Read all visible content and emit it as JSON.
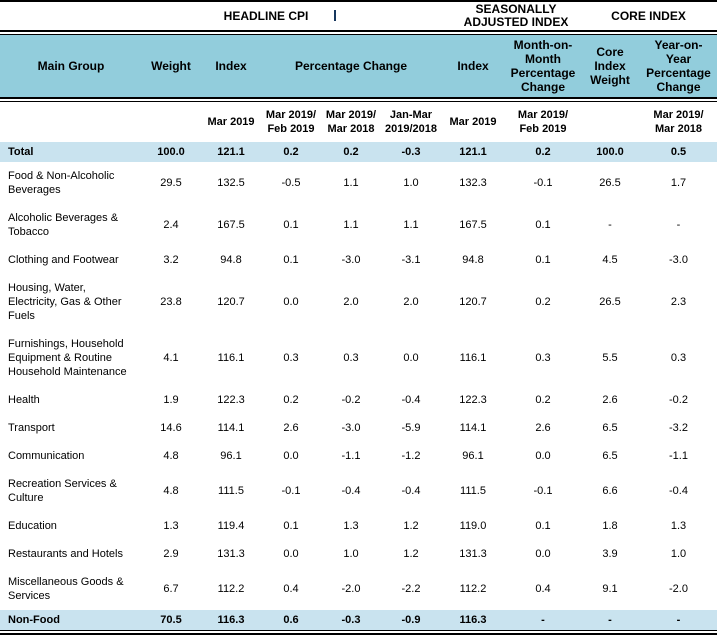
{
  "colors": {
    "header-bg": "#92CDDC",
    "highlight-bg": "#C9E3EF",
    "stray-mark": "#17375E"
  },
  "table": {
    "group_headers": {
      "headline": "HEADLINE CPI",
      "seasonal": "SEASONALLY\nADJUSTED INDEX",
      "core": "CORE INDEX"
    },
    "columns": {
      "main_group": "Main Group",
      "weight": "Weight",
      "index": "Index",
      "pct_change": "Percentage Change",
      "sa_index": "Index",
      "mom_pct_change": "Month-on-\nMonth\nPercentage\nChange",
      "core_weight": "Core\nIndex\nWeight",
      "yoy_pct_change": "Year-on-\nYear\nPercentage\nChange"
    },
    "period_headers": {
      "index": "Mar 2019",
      "chg_mom": "Mar 2019/\nFeb 2019",
      "chg_yoy": "Mar 2019/\nMar 2018",
      "chg_qtr": "Jan-Mar\n2019/2018",
      "sa_index": "Mar 2019",
      "sa_chg": "Mar 2019/\nFeb 2019",
      "core_chg": "Mar 2019/\nMar 2018"
    },
    "rows": [
      {
        "name": "Total",
        "highlight": true,
        "values": [
          "100.0",
          "121.1",
          "0.2",
          "0.2",
          "-0.3",
          "121.1",
          "0.2",
          "100.0",
          "0.5"
        ]
      },
      {
        "name": "Food & Non-Alcoholic Beverages",
        "highlight": false,
        "values": [
          "29.5",
          "132.5",
          "-0.5",
          "1.1",
          "1.0",
          "132.3",
          "-0.1",
          "26.5",
          "1.7"
        ]
      },
      {
        "name": "Alcoholic Beverages & Tobacco",
        "highlight": false,
        "values": [
          "2.4",
          "167.5",
          "0.1",
          "1.1",
          "1.1",
          "167.5",
          "0.1",
          "-",
          "-"
        ]
      },
      {
        "name": "Clothing and Footwear",
        "highlight": false,
        "values": [
          "3.2",
          "94.8",
          "0.1",
          "-3.0",
          "-3.1",
          "94.8",
          "0.1",
          "4.5",
          "-3.0"
        ]
      },
      {
        "name": "Housing, Water, Electricity, Gas & Other Fuels",
        "highlight": false,
        "values": [
          "23.8",
          "120.7",
          "0.0",
          "2.0",
          "2.0",
          "120.7",
          "0.2",
          "26.5",
          "2.3"
        ]
      },
      {
        "name": "Furnishings, Household Equipment & Routine Household Maintenance",
        "highlight": false,
        "values": [
          "4.1",
          "116.1",
          "0.3",
          "0.3",
          "0.0",
          "116.1",
          "0.3",
          "5.5",
          "0.3"
        ]
      },
      {
        "name": "Health",
        "highlight": false,
        "values": [
          "1.9",
          "122.3",
          "0.2",
          "-0.2",
          "-0.4",
          "122.3",
          "0.2",
          "2.6",
          "-0.2"
        ]
      },
      {
        "name": "Transport",
        "highlight": false,
        "values": [
          "14.6",
          "114.1",
          "2.6",
          "-3.0",
          "-5.9",
          "114.1",
          "2.6",
          "6.5",
          "-3.2"
        ]
      },
      {
        "name": "Communication",
        "highlight": false,
        "values": [
          "4.8",
          "96.1",
          "0.0",
          "-1.1",
          "-1.2",
          "96.1",
          "0.0",
          "6.5",
          "-1.1"
        ]
      },
      {
        "name": "Recreation Services & Culture",
        "highlight": false,
        "values": [
          "4.8",
          "111.5",
          "-0.1",
          "-0.4",
          "-0.4",
          "111.5",
          "-0.1",
          "6.6",
          "-0.4"
        ]
      },
      {
        "name": "Education",
        "highlight": false,
        "values": [
          "1.3",
          "119.4",
          "0.1",
          "1.3",
          "1.2",
          "119.0",
          "0.1",
          "1.8",
          "1.3"
        ]
      },
      {
        "name": "Restaurants and Hotels",
        "highlight": false,
        "values": [
          "2.9",
          "131.3",
          "0.0",
          "1.0",
          "1.2",
          "131.3",
          "0.0",
          "3.9",
          "1.0"
        ]
      },
      {
        "name": "Miscellaneous Goods & Services",
        "highlight": false,
        "values": [
          "6.7",
          "112.2",
          "0.4",
          "-2.0",
          "-2.2",
          "112.2",
          "0.4",
          "9.1",
          "-2.0"
        ]
      },
      {
        "name": "Non-Food",
        "highlight": true,
        "values": [
          "70.5",
          "116.3",
          "0.6",
          "-0.3",
          "-0.9",
          "116.3",
          "-",
          "-",
          "-"
        ]
      }
    ]
  }
}
